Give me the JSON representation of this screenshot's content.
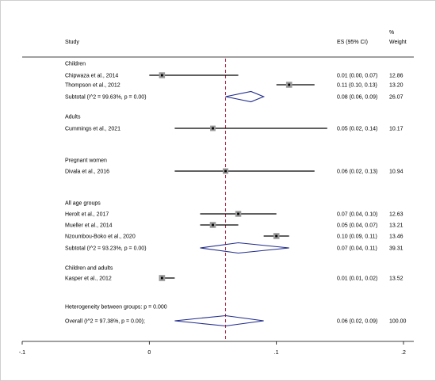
{
  "chart_data": {
    "type": "forest",
    "headers": {
      "study": "Study",
      "es": "ES (95% CI)",
      "weight_line1": "%",
      "weight_line2": "Weight"
    },
    "xlim": [
      -0.1,
      0.2
    ],
    "xticks": [
      {
        "value": -0.1,
        "label": "-.1"
      },
      {
        "value": 0,
        "label": "0"
      },
      {
        "value": 0.1,
        "label": ".1"
      },
      {
        "value": 0.2,
        "label": ".2"
      }
    ],
    "overall_reference_line": 0.06,
    "rows": [
      {
        "kind": "group",
        "label": "Children"
      },
      {
        "kind": "study",
        "label": "Chipwaza et al., 2014",
        "es": 0.01,
        "lo": 0.0,
        "hi": 0.07,
        "es_text": "0.01 (0.00, 0.07)",
        "weight": "12.86"
      },
      {
        "kind": "study",
        "label": "Thompson et al., 2012",
        "es": 0.11,
        "lo": 0.1,
        "hi": 0.13,
        "es_text": "0.11 (0.10, 0.13)",
        "weight": "13.20"
      },
      {
        "kind": "subtotal",
        "label": "Subtotal  (I^2 = 99.63%, p = 0.00)",
        "es": 0.08,
        "lo": 0.06,
        "hi": 0.09,
        "es_text": "0.08 (0.06, 0.09)",
        "weight": "26.07"
      },
      {
        "kind": "group",
        "label": "Adults"
      },
      {
        "kind": "study",
        "label": "Cummings et al., 2021",
        "es": 0.05,
        "lo": 0.02,
        "hi": 0.14,
        "es_text": "0.05 (0.02, 0.14)",
        "weight": "10.17"
      },
      {
        "kind": "group",
        "label": "Pregnant women"
      },
      {
        "kind": "study",
        "label": "Divala et al., 2016",
        "es": 0.06,
        "lo": 0.02,
        "hi": 0.13,
        "es_text": "0.06 (0.02, 0.13)",
        "weight": "10.94"
      },
      {
        "kind": "group",
        "label": "All age groups"
      },
      {
        "kind": "study",
        "label": "Herolt et al., 2017",
        "es": 0.07,
        "lo": 0.04,
        "hi": 0.1,
        "es_text": "0.07 (0.04, 0.10)",
        "weight": "12.63"
      },
      {
        "kind": "study",
        "label": "Mueller et al., 2014",
        "es": 0.05,
        "lo": 0.04,
        "hi": 0.07,
        "es_text": "0.05 (0.04, 0.07)",
        "weight": "13.21"
      },
      {
        "kind": "study",
        "label": "Nzoumbou-Boko et al., 2020",
        "es": 0.1,
        "lo": 0.09,
        "hi": 0.11,
        "es_text": "0.10 (0.09, 0.11)",
        "weight": "13.46"
      },
      {
        "kind": "subtotal",
        "label": "Subtotal  (I^2 = 93.23%, p = 0.00)",
        "es": 0.07,
        "lo": 0.04,
        "hi": 0.11,
        "es_text": "0.07 (0.04, 0.11)",
        "weight": "39.31"
      },
      {
        "kind": "group",
        "label": "Children and adults"
      },
      {
        "kind": "study",
        "label": "Kasper et al., 2012",
        "es": 0.01,
        "lo": 0.01,
        "hi": 0.02,
        "es_text": "0.01 (0.01, 0.02)",
        "weight": "13.52"
      },
      {
        "kind": "note",
        "label": "Heterogeneity between groups: p = 0.000"
      },
      {
        "kind": "overall",
        "label": "Overall  (I^2 = 97.38%, p = 0.00);",
        "es": 0.06,
        "lo": 0.02,
        "hi": 0.09,
        "es_text": "0.06 (0.02, 0.09)",
        "weight": "100.00"
      }
    ]
  }
}
